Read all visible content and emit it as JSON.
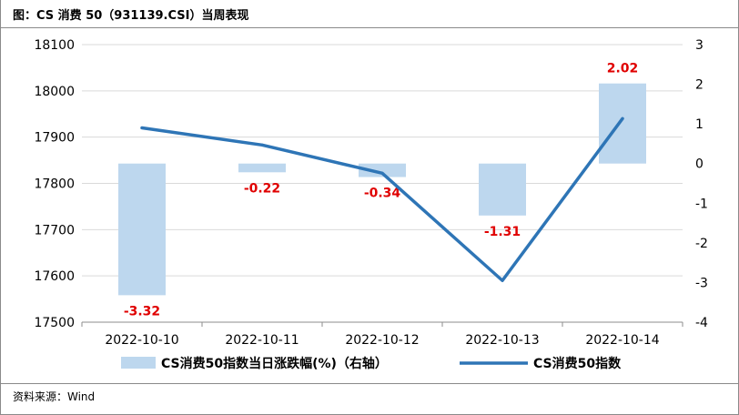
{
  "header": {
    "title": "图：CS 消费 50（931139.CSI）当周表现"
  },
  "footer": {
    "source": "资料来源：Wind"
  },
  "colors": {
    "bar": "#bdd7ee",
    "line": "#2e75b6",
    "label": "#e00000",
    "grid": "#d9d9d9"
  },
  "chart_data": {
    "type": "bar+line",
    "categories": [
      "2022-10-10",
      "2022-10-11",
      "2022-10-12",
      "2022-10-13",
      "2022-10-14"
    ],
    "series": [
      {
        "name": "CS消费50指数当日涨跌幅(%)（右轴）",
        "type": "bar",
        "axis": "right",
        "values": [
          -3.32,
          -0.22,
          -0.34,
          -1.31,
          2.02
        ],
        "data_labels": [
          "-3.32",
          "-0.22",
          "-0.34",
          "-1.31",
          "2.02"
        ]
      },
      {
        "name": "CS消费50指数",
        "type": "line",
        "axis": "left",
        "values": [
          17920,
          17883,
          17822,
          17590,
          17940
        ]
      }
    ],
    "y_left": {
      "min": 17500,
      "max": 18100,
      "ticks": [
        "17500",
        "17600",
        "17700",
        "17800",
        "17900",
        "18000",
        "18100"
      ]
    },
    "y_right": {
      "min": -4,
      "max": 3,
      "ticks": [
        "-4",
        "-3",
        "-2",
        "-1",
        "0",
        "1",
        "2",
        "3"
      ]
    },
    "grid": "horizontal",
    "legend_position": "bottom"
  }
}
